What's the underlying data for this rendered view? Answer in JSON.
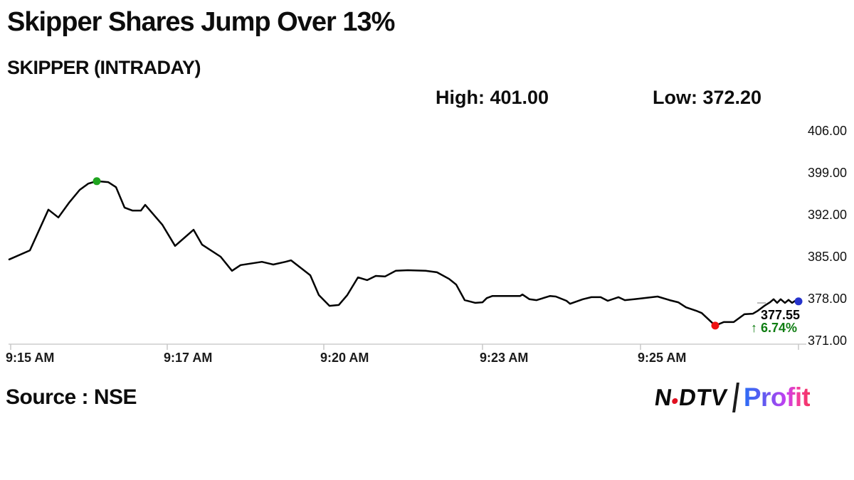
{
  "header": {
    "title": "Skipper Shares Jump Over 13%",
    "subtitle": "SKIPPER (INTRADAY)",
    "high_label": "High: 401.00",
    "low_label": "Low: 372.20"
  },
  "footer": {
    "source": "Source : NSE",
    "logo": {
      "ndtv_left": "N",
      "ndtv_right": "DTV",
      "profit": "Profit"
    }
  },
  "colors": {
    "line": "#000000",
    "high_dot": "#1fa41f",
    "low_dot": "#ee1111",
    "last_dot": "#2633cc",
    "change_text": "#0f7d12",
    "axis_line": "#d9d9d9",
    "tick": "#c8c8c8",
    "axis_label": "#1b1b1b",
    "prev_dash": "#bbbbbb"
  },
  "chart_data": {
    "type": "line",
    "title": "SKIPPER (INTRADAY)",
    "high": 401.0,
    "low": 372.2,
    "last_price": 377.55,
    "last_price_label": "377.55",
    "change_arrow": "↑",
    "change_text": "6.74%",
    "change_direction": "up",
    "y_axis": {
      "ticks": [
        "406.00",
        "399.00",
        "392.00",
        "385.00",
        "378.00",
        "371.00"
      ],
      "range": [
        371,
        406
      ]
    },
    "x_axis": {
      "ticks": [
        "9:15 AM",
        "9:17 AM",
        "9:20 AM",
        "9:23 AM",
        "9:25 AM"
      ]
    },
    "grid": false,
    "legend": false,
    "points": [
      [
        13,
        384.55
      ],
      [
        42,
        386.05
      ],
      [
        68,
        392.85
      ],
      [
        82,
        391.55
      ],
      [
        97,
        394.0
      ],
      [
        112,
        396.15
      ],
      [
        124,
        397.2
      ],
      [
        136,
        397.6
      ],
      [
        152,
        397.45
      ],
      [
        163,
        396.6
      ],
      [
        175,
        393.2
      ],
      [
        186,
        392.7
      ],
      [
        198,
        392.7
      ],
      [
        204,
        393.65
      ],
      [
        228,
        390.35
      ],
      [
        246,
        386.8
      ],
      [
        272,
        389.5
      ],
      [
        284,
        387.0
      ],
      [
        310,
        385.0
      ],
      [
        326,
        382.65
      ],
      [
        338,
        383.6
      ],
      [
        368,
        384.15
      ],
      [
        384,
        383.7
      ],
      [
        401,
        384.15
      ],
      [
        409,
        384.4
      ],
      [
        436,
        381.9
      ],
      [
        448,
        378.6
      ],
      [
        463,
        376.8
      ],
      [
        476,
        376.95
      ],
      [
        488,
        378.6
      ],
      [
        503,
        381.55
      ],
      [
        516,
        381.1
      ],
      [
        528,
        381.8
      ],
      [
        541,
        381.7
      ],
      [
        556,
        382.65
      ],
      [
        573,
        382.75
      ],
      [
        598,
        382.65
      ],
      [
        614,
        382.4
      ],
      [
        631,
        381.3
      ],
      [
        641,
        380.35
      ],
      [
        653,
        377.75
      ],
      [
        668,
        377.3
      ],
      [
        678,
        377.4
      ],
      [
        684,
        378.1
      ],
      [
        692,
        378.45
      ],
      [
        719,
        378.45
      ],
      [
        731,
        378.45
      ],
      [
        734,
        378.7
      ],
      [
        744,
        377.9
      ],
      [
        754,
        377.75
      ],
      [
        773,
        378.45
      ],
      [
        781,
        378.35
      ],
      [
        796,
        377.65
      ],
      [
        801,
        377.15
      ],
      [
        819,
        377.9
      ],
      [
        831,
        378.25
      ],
      [
        844,
        378.25
      ],
      [
        854,
        377.65
      ],
      [
        869,
        378.25
      ],
      [
        878,
        377.75
      ],
      [
        898,
        378.0
      ],
      [
        924,
        378.35
      ],
      [
        941,
        377.75
      ],
      [
        953,
        377.4
      ],
      [
        964,
        376.55
      ],
      [
        978,
        376.0
      ],
      [
        986,
        375.6
      ],
      [
        1005,
        373.5
      ],
      [
        1017,
        374.1
      ],
      [
        1031,
        374.1
      ],
      [
        1046,
        375.4
      ],
      [
        1058,
        375.5
      ],
      [
        1065,
        376.0
      ],
      [
        1074,
        376.8
      ],
      [
        1082,
        377.4
      ],
      [
        1087,
        377.9
      ],
      [
        1092,
        377.3
      ],
      [
        1097,
        377.9
      ],
      [
        1103,
        377.3
      ],
      [
        1108,
        377.8
      ],
      [
        1113,
        377.3
      ],
      [
        1118,
        377.7
      ],
      [
        1122,
        377.55
      ]
    ],
    "markers": {
      "high_index": 7,
      "low_index": 67,
      "last_index": 82
    }
  }
}
